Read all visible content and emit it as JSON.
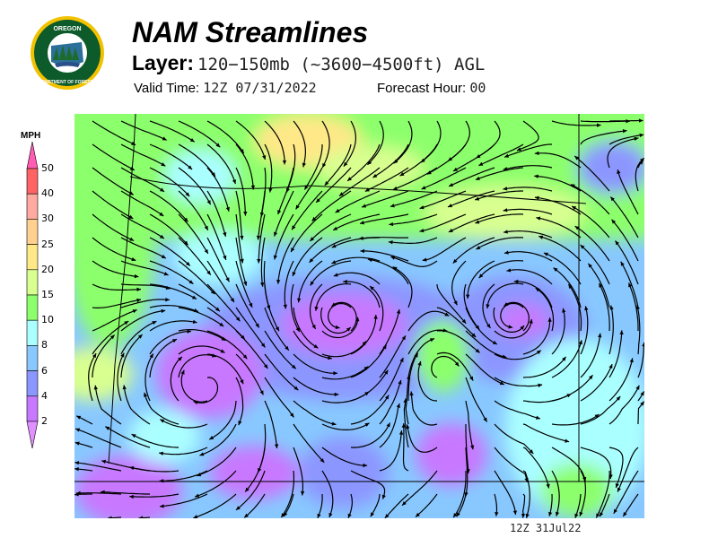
{
  "logo": {
    "text_top": "OREGON",
    "text_bottom": "DEPARTMENT OF FORESTRY"
  },
  "header": {
    "title": "NAM Streamlines",
    "layer_label": "Layer:",
    "layer_value": "120−150mb (~3600−4500ft) AGL",
    "valid_label": "Valid Time:",
    "valid_value": "12Z 07/31/2022",
    "forecast_label": "Forecast Hour:",
    "forecast_value": "00"
  },
  "legend": {
    "units": "MPH",
    "ticks": [
      "50",
      "40",
      "30",
      "25",
      "20",
      "15",
      "10",
      "8",
      "6",
      "4",
      "2"
    ],
    "colors": [
      "#ff6464",
      "#ffaaa0",
      "#ffd090",
      "#ffe888",
      "#d8ff90",
      "#8cff6c",
      "#aaffff",
      "#88c8ff",
      "#8c96ff",
      "#c878ff"
    ],
    "over_color": "#ff5cb4",
    "under_color": "#e090ff"
  },
  "footer": {
    "stamp": "12Z  31Jul22"
  }
}
